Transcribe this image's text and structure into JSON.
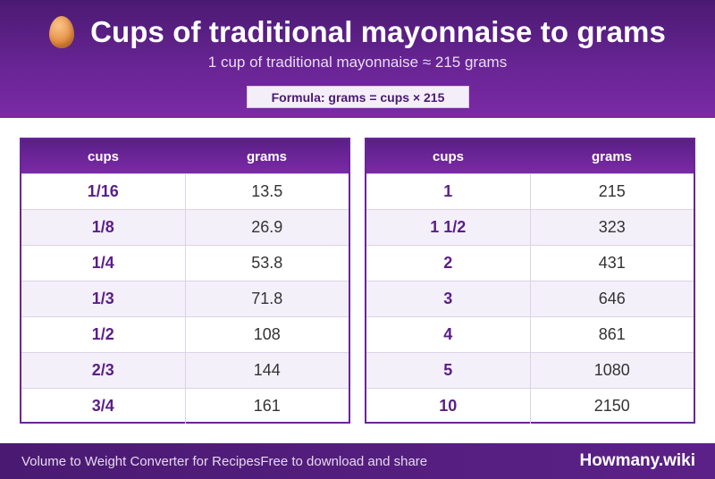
{
  "header": {
    "icon": "egg-icon",
    "title": "Cups of traditional mayonnaise to grams",
    "subtitle": "1 cup of traditional mayonnaise ≈ 215 grams",
    "formula": "Formula: grams = cups × 215"
  },
  "tables": [
    {
      "col_cups": "cups",
      "col_grams": "grams",
      "rows": [
        {
          "cups": "1/16",
          "grams": "13.5"
        },
        {
          "cups": "1/8",
          "grams": "26.9"
        },
        {
          "cups": "1/4",
          "grams": "53.8"
        },
        {
          "cups": "1/3",
          "grams": "71.8"
        },
        {
          "cups": "1/2",
          "grams": "108"
        },
        {
          "cups": "2/3",
          "grams": "144"
        },
        {
          "cups": "3/4",
          "grams": "161"
        }
      ]
    },
    {
      "col_cups": "cups",
      "col_grams": "grams",
      "rows": [
        {
          "cups": "1",
          "grams": "215"
        },
        {
          "cups": "1 1/2",
          "grams": "323"
        },
        {
          "cups": "2",
          "grams": "431"
        },
        {
          "cups": "3",
          "grams": "646"
        },
        {
          "cups": "4",
          "grams": "861"
        },
        {
          "cups": "5",
          "grams": "1080"
        },
        {
          "cups": "10",
          "grams": "2150"
        }
      ]
    }
  ],
  "footer": {
    "left_text": "Volume to Weight Converter for Recipes",
    "middle_text": "Free to download and share",
    "brand": "Howmany.wiki"
  },
  "colors": {
    "accent": "#6a2596",
    "header_dark": "#4a1a72",
    "row_alt": "#f4f0fa"
  }
}
